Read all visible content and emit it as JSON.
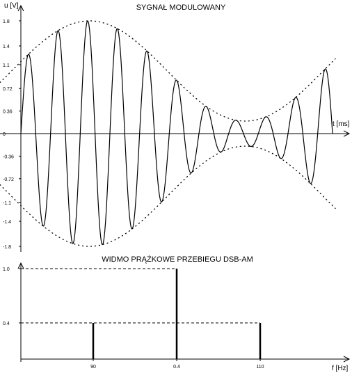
{
  "chart_data": [
    {
      "type": "line",
      "title": "SYGNAŁ MODULOWANY",
      "ylabel": "u [V]",
      "xlabel": "t [ms]",
      "yticks": [
        "1.8",
        "1.4",
        "1.1",
        "0.72",
        "0.36",
        "0",
        "-0.36",
        "-0.72",
        "-1.1",
        "-1.4",
        "-1.8"
      ],
      "ylim": [
        -1.8,
        1.8
      ],
      "grid": false,
      "signal": {
        "carrier_amplitude": 1.0,
        "modulation_index": 0.8,
        "carrier_cycles": 10.5,
        "envelope_peak_fraction": 0.22,
        "envelope_style": "dotted"
      }
    },
    {
      "type": "bar",
      "title": "WIDMO PRĄŻKOWE PRZEBIEGU DSB-AM",
      "xlabel": "f [Hz]",
      "ylabel": "",
      "yticks": [
        "1.0",
        "0.4"
      ],
      "xtick_labels": [
        "90",
        "0.4",
        "110"
      ],
      "bars": [
        {
          "label": "90",
          "value": 0.4
        },
        {
          "label": "0.4",
          "value": 1.0
        },
        {
          "label": "110",
          "value": 0.4
        }
      ],
      "ylim": [
        0,
        1.0
      ]
    }
  ]
}
